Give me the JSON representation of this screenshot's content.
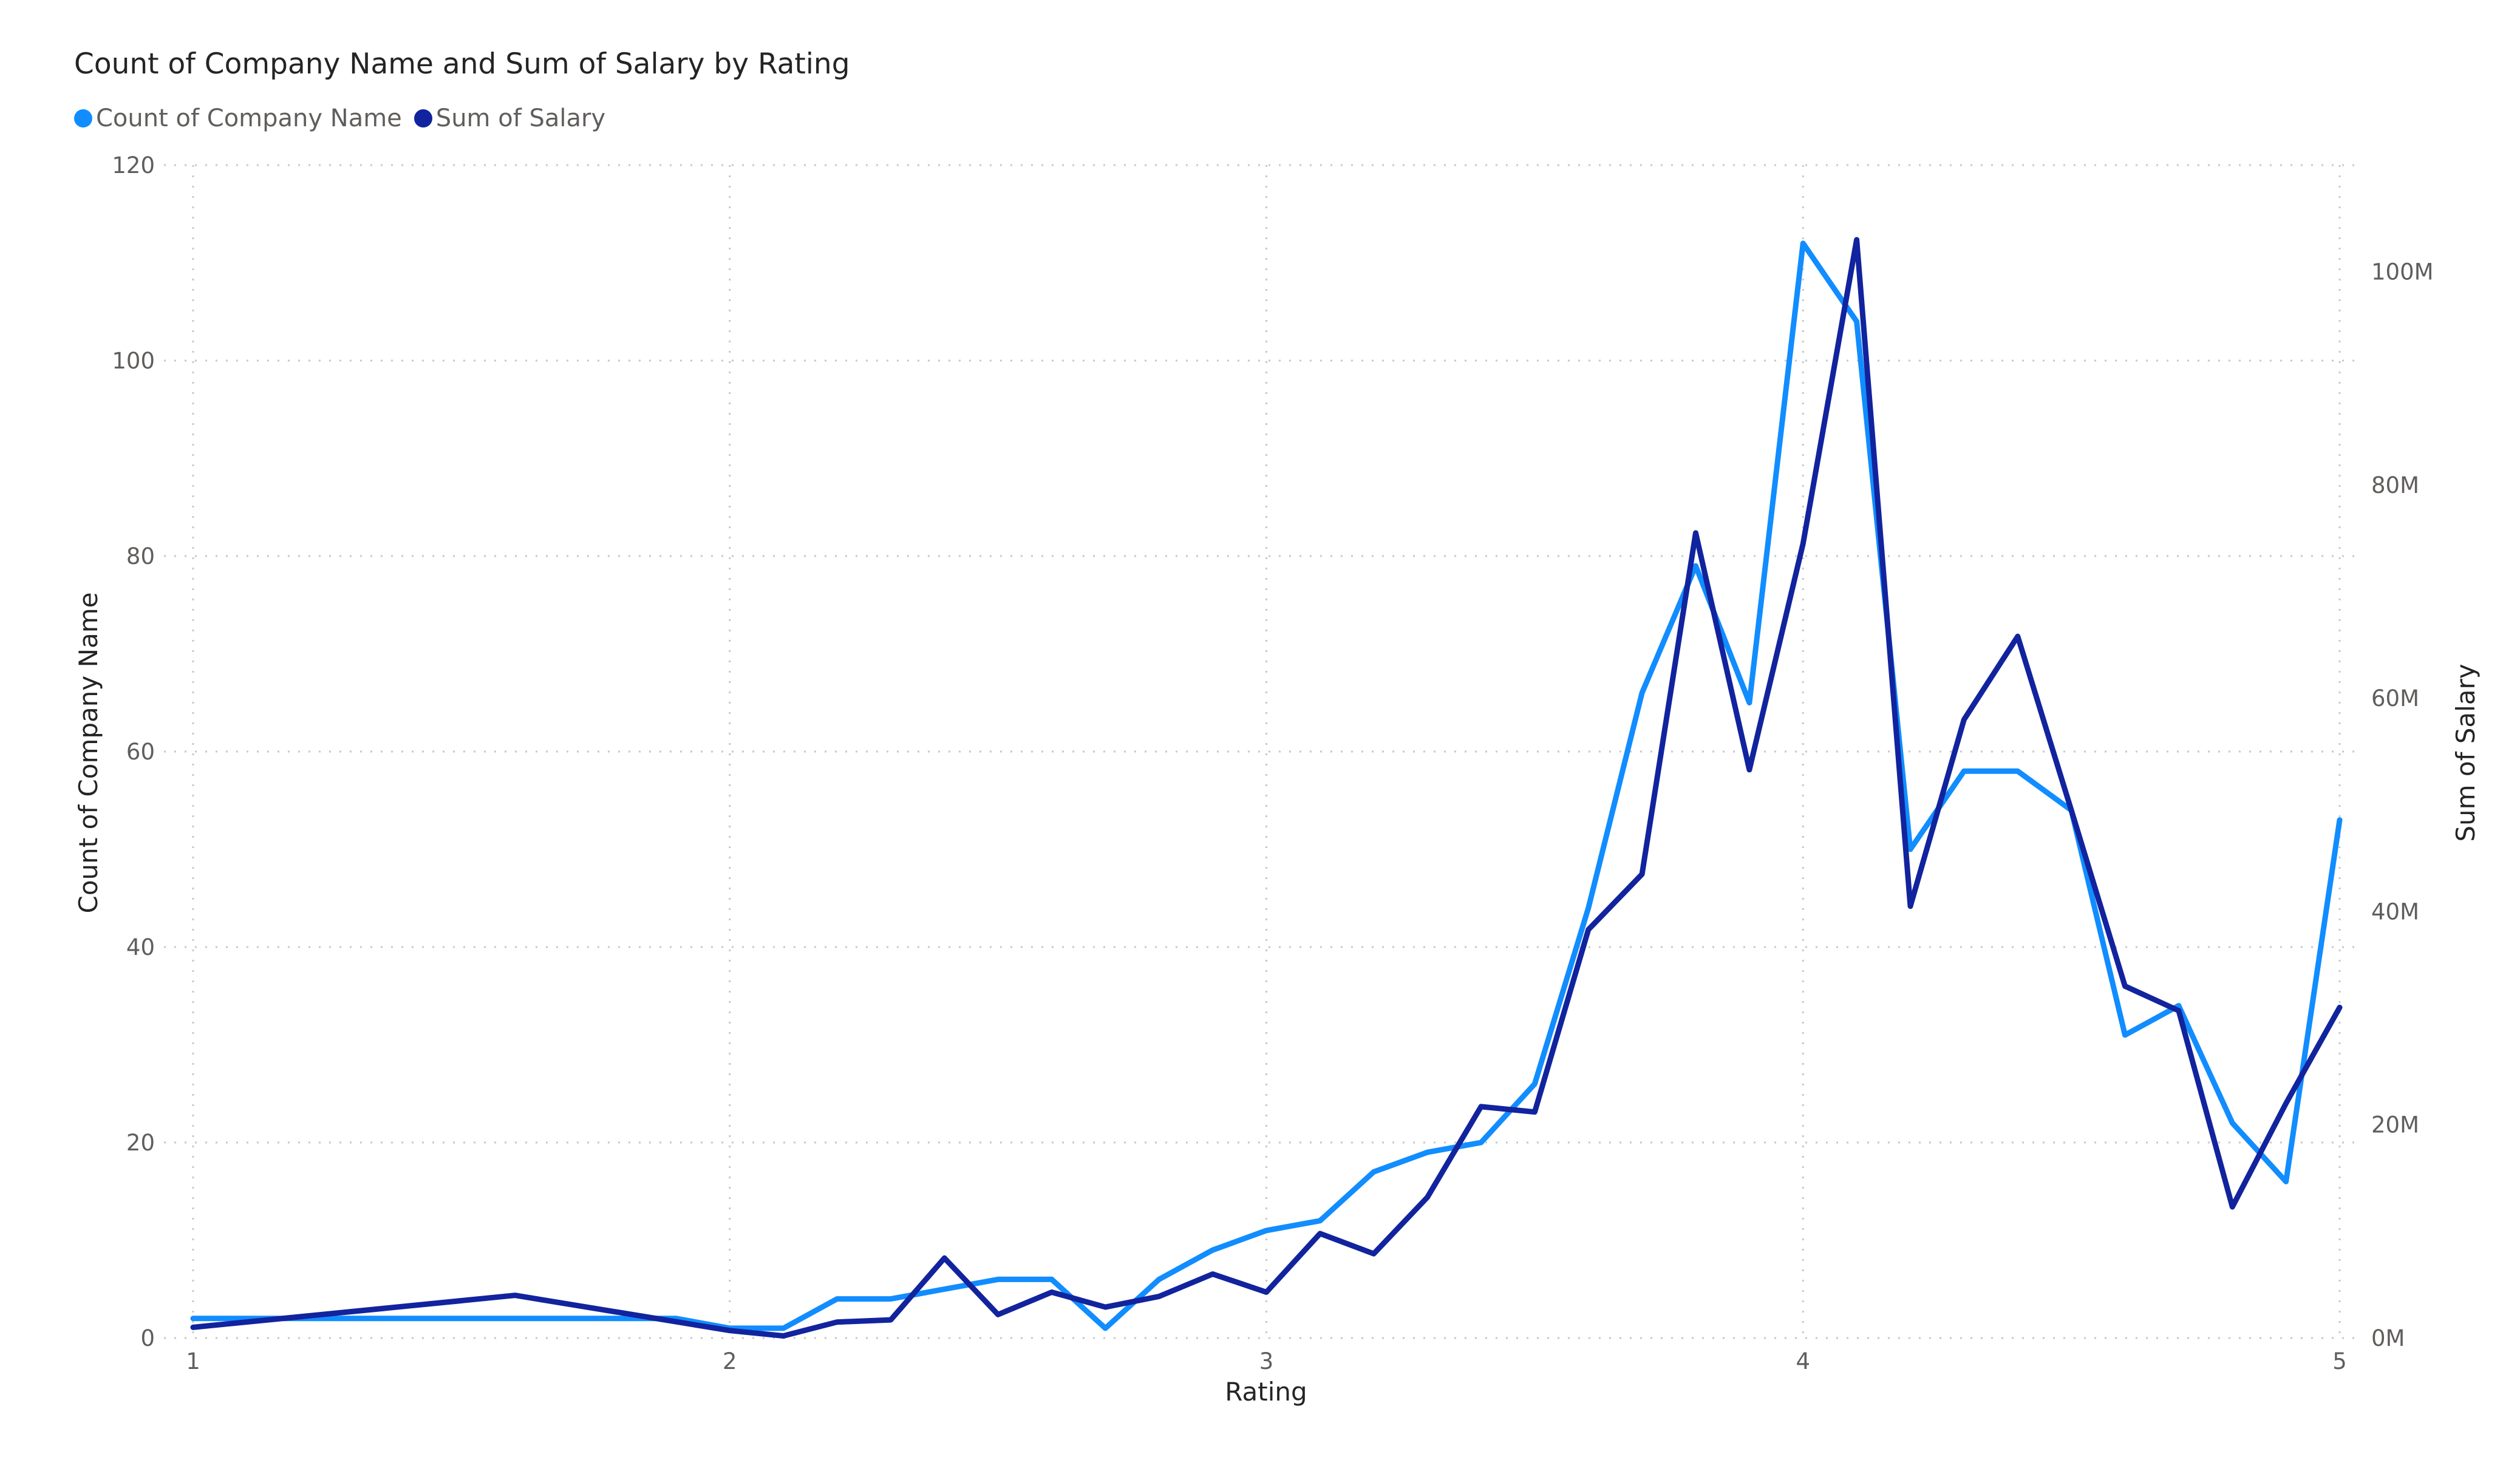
{
  "chart_data": {
    "type": "line",
    "title": "Count of Company Name and Sum of Salary by Rating",
    "xlabel": "Rating",
    "ylabel_left": "Count of Company Name",
    "ylabel_right": "Sum of Salary",
    "xlim": [
      1,
      5
    ],
    "ylim_left": [
      0,
      120
    ],
    "ylim_right": [
      0,
      110000000
    ],
    "x_ticks": [
      "1",
      "2",
      "3",
      "4",
      "5"
    ],
    "y_ticks_left": [
      "0",
      "20",
      "40",
      "60",
      "80",
      "100",
      "120"
    ],
    "y_ticks_right": [
      "0M",
      "20M",
      "40M",
      "60M",
      "80M",
      "100M"
    ],
    "legend_position": "top-left",
    "grid": true,
    "series": [
      {
        "name": "Count of Company Name",
        "axis": "left",
        "color": "#118DFF",
        "points": [
          [
            1.0,
            2
          ],
          [
            1.9,
            2
          ],
          [
            2.0,
            1
          ],
          [
            2.1,
            1
          ],
          [
            2.2,
            4
          ],
          [
            2.3,
            4
          ],
          [
            2.4,
            5
          ],
          [
            2.5,
            6
          ],
          [
            2.6,
            6
          ],
          [
            2.7,
            1
          ],
          [
            2.8,
            6
          ],
          [
            2.9,
            9
          ],
          [
            3.0,
            11
          ],
          [
            3.1,
            12
          ],
          [
            3.2,
            17
          ],
          [
            3.3,
            19
          ],
          [
            3.4,
            20
          ],
          [
            3.5,
            26
          ],
          [
            3.6,
            44
          ],
          [
            3.7,
            66
          ],
          [
            3.8,
            79
          ],
          [
            3.9,
            65
          ],
          [
            4.0,
            112
          ],
          [
            4.1,
            104
          ],
          [
            4.2,
            50
          ],
          [
            4.3,
            58
          ],
          [
            4.4,
            58
          ],
          [
            4.5,
            54
          ],
          [
            4.6,
            31
          ],
          [
            4.7,
            34
          ],
          [
            4.8,
            22
          ],
          [
            4.9,
            16
          ],
          [
            5.0,
            53
          ]
        ]
      },
      {
        "name": "Sum of Salary",
        "axis": "right",
        "color": "#12239E",
        "points": [
          [
            1.0,
            1000000
          ],
          [
            1.6,
            4000000
          ],
          [
            2.0,
            700000
          ],
          [
            2.1,
            200000
          ],
          [
            2.2,
            1500000
          ],
          [
            2.3,
            1700000
          ],
          [
            2.4,
            7500000
          ],
          [
            2.5,
            2200000
          ],
          [
            2.6,
            4300000
          ],
          [
            2.7,
            2900000
          ],
          [
            2.8,
            3900000
          ],
          [
            2.9,
            6000000
          ],
          [
            3.0,
            4300000
          ],
          [
            3.1,
            9800000
          ],
          [
            3.2,
            7900000
          ],
          [
            3.3,
            13200000
          ],
          [
            3.4,
            21700000
          ],
          [
            3.5,
            21200000
          ],
          [
            3.6,
            38300000
          ],
          [
            3.7,
            43500000
          ],
          [
            3.8,
            75500000
          ],
          [
            3.9,
            53300000
          ],
          [
            4.0,
            74500000
          ],
          [
            4.1,
            103000000
          ],
          [
            4.2,
            40500000
          ],
          [
            4.3,
            58000000
          ],
          [
            4.4,
            65800000
          ],
          [
            4.5,
            49500000
          ],
          [
            4.6,
            33000000
          ],
          [
            4.7,
            30700000
          ],
          [
            4.8,
            12300000
          ],
          [
            4.9,
            22000000
          ],
          [
            5.0,
            31000000
          ]
        ]
      }
    ]
  }
}
